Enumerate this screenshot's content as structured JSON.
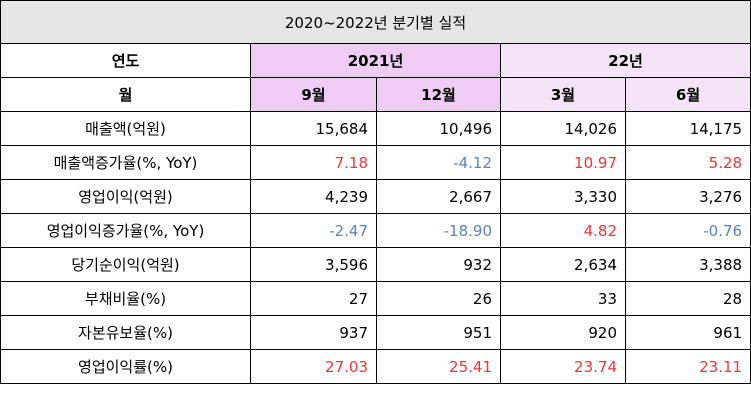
{
  "title": "2020~2022년 분기별 실적",
  "header": {
    "year_label": "연도",
    "month_label": "월",
    "year_2021": "2021년",
    "year_22": "22년",
    "months": [
      "9월",
      "12월",
      "3월",
      "6월"
    ]
  },
  "rows": [
    {
      "label": "매출액(억원)",
      "values": [
        "15,684",
        "10,496",
        "14,026",
        "14,175"
      ],
      "colors": [
        "dark",
        "dark",
        "dark",
        "dark"
      ]
    },
    {
      "label": "매출액증가율(%, YoY)",
      "values": [
        "7.18",
        "-4.12",
        "10.97",
        "5.28"
      ],
      "colors": [
        "pos",
        "neg",
        "pos",
        "pos"
      ]
    },
    {
      "label": "영업이익(억원)",
      "values": [
        "4,239",
        "2,667",
        "3,330",
        "3,276"
      ],
      "colors": [
        "dark",
        "dark",
        "dark",
        "dark"
      ]
    },
    {
      "label": "영업이익증가율(%, YoY)",
      "values": [
        "-2.47",
        "-18.90",
        "4.82",
        "-0.76"
      ],
      "colors": [
        "neg",
        "neg",
        "pos",
        "neg"
      ]
    },
    {
      "label": "당기순이익(억원)",
      "values": [
        "3,596",
        "932",
        "2,634",
        "3,388"
      ],
      "colors": [
        "dark",
        "dark",
        "dark",
        "dark"
      ]
    },
    {
      "label": "부채비율(%)",
      "values": [
        "27",
        "26",
        "33",
        "28"
      ],
      "colors": [
        "dark",
        "dark",
        "dark",
        "dark"
      ]
    },
    {
      "label": "자본유보율(%)",
      "values": [
        "937",
        "951",
        "920",
        "961"
      ],
      "colors": [
        "dark",
        "dark",
        "dark",
        "dark"
      ]
    },
    {
      "label": "영업이익률(%)",
      "values": [
        "27.03",
        "25.41",
        "23.74",
        "23.11"
      ],
      "colors": [
        "pos",
        "pos",
        "pos",
        "pos"
      ]
    }
  ],
  "colors": {
    "title_bg": "#e6e6e6",
    "year_2021_bg": "#efccf3",
    "year_22_bg": "#f5e4f7",
    "positive_text": "#e8383d",
    "negative_text": "#5b84b5"
  }
}
